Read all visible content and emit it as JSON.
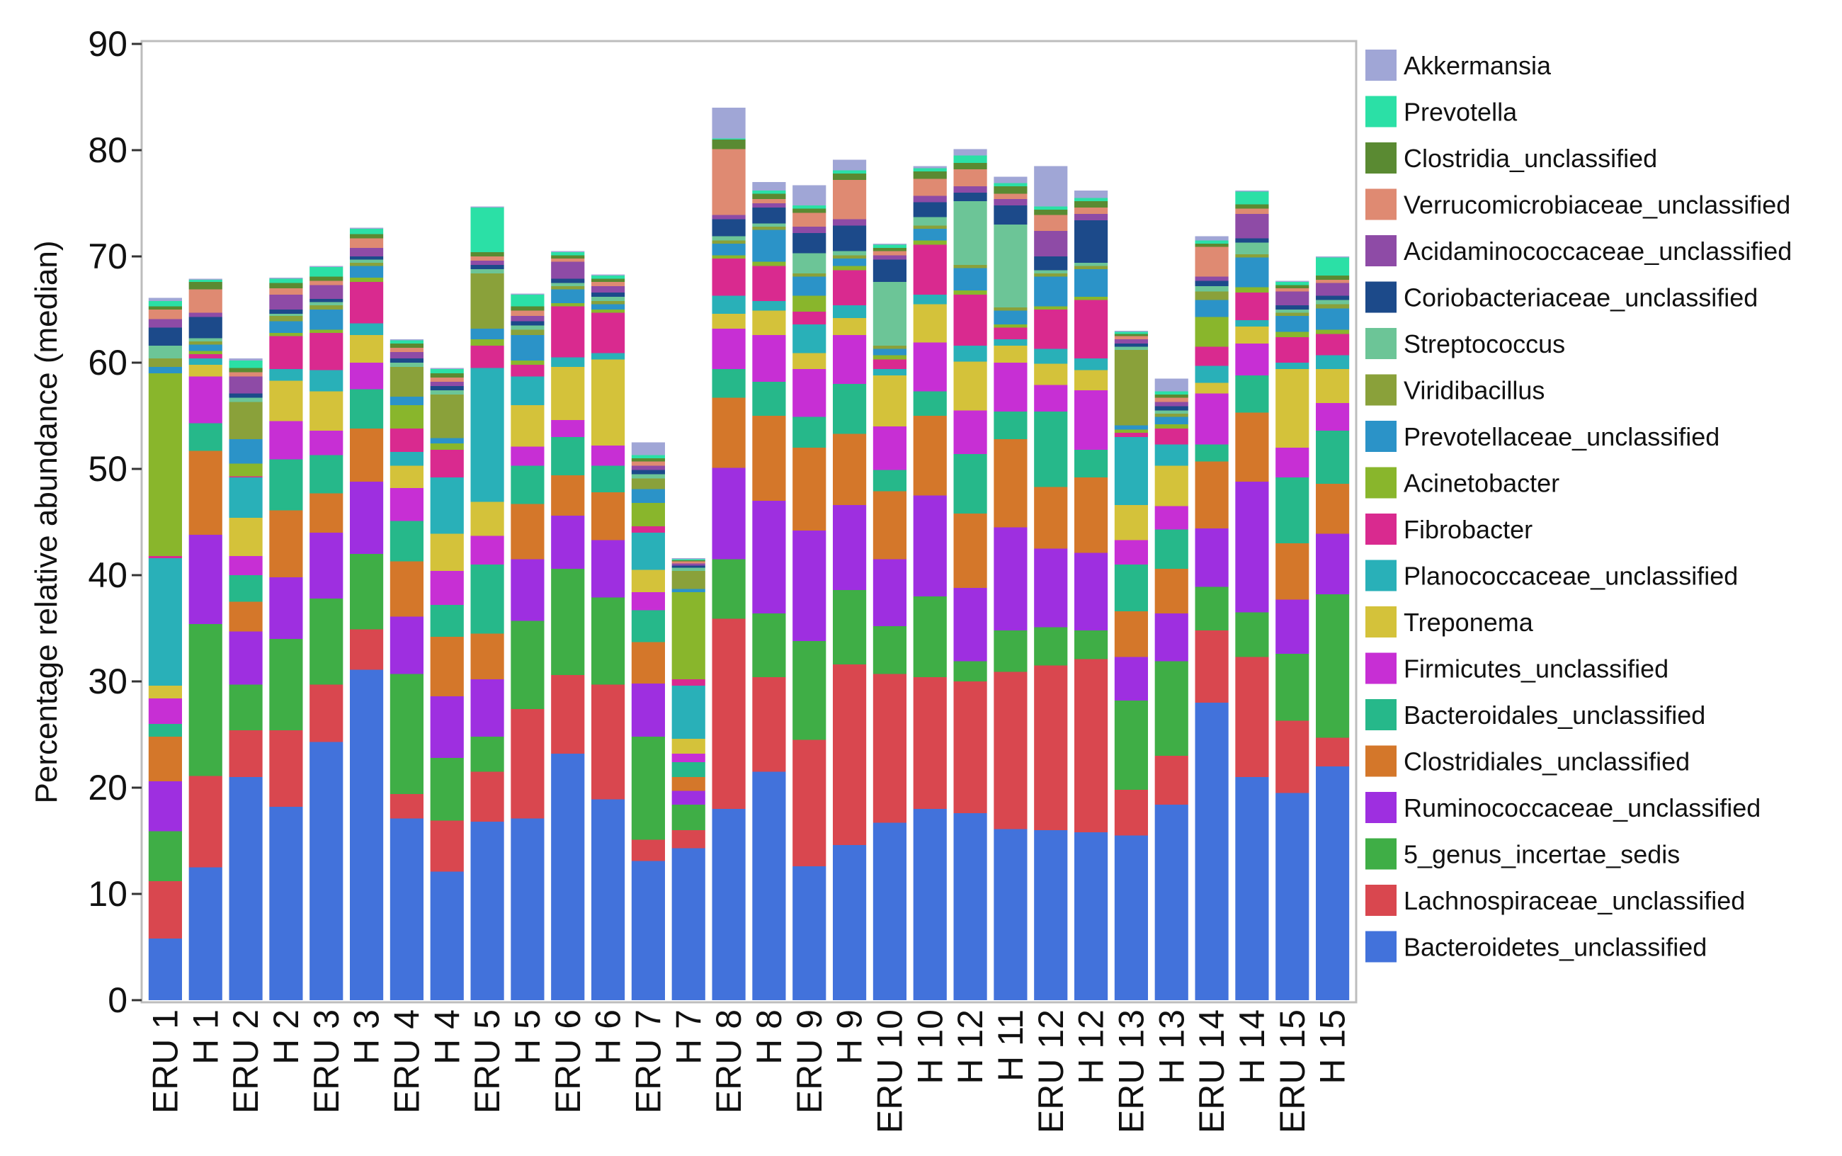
{
  "chart_data": {
    "type": "bar",
    "stacked": true,
    "title": "",
    "xlabel": "",
    "ylabel": "Percentage relative abundance (median)",
    "ylim": [
      0,
      90
    ],
    "yticks": [
      0,
      10,
      20,
      30,
      40,
      50,
      60,
      70,
      80,
      90
    ],
    "grid": false,
    "legend_position": "right",
    "categories": [
      "ERU 1",
      "H 1",
      "ERU 2",
      "H 2",
      "ERU 3",
      "H 3",
      "ERU 4",
      "H 4",
      "ERU 5",
      "H 5",
      "ERU 6",
      "H 6",
      "ERU 7",
      "H 7",
      "ERU 8",
      "H 8",
      "ERU 9",
      "H 9",
      "ERU 10",
      "H 10",
      "H 12",
      "H 11",
      "ERU 12",
      "H 12",
      "ERU 13",
      "H 13",
      "ERU 14",
      "H 14",
      "ERU 15",
      "H 15"
    ],
    "series": [
      {
        "name": "Bacteroidetes_unclassified",
        "color": "#4272db",
        "values": [
          5.8,
          12.5,
          21,
          18.2,
          24.3,
          31.1,
          17.1,
          12.1,
          16.8,
          17.1,
          23.2,
          18.9,
          13.1,
          14.3,
          18,
          21.5,
          12.6,
          14.6,
          16.7,
          18,
          17.6,
          16.1,
          16,
          15.8,
          15.5,
          18.4,
          28,
          21,
          19.5,
          22
        ]
      },
      {
        "name": "Lachnospiraceae_unclassified",
        "color": "#d9474f",
        "values": [
          5.4,
          8.6,
          4.4,
          7.2,
          5.4,
          3.8,
          2.3,
          4.8,
          4.7,
          10.3,
          7.4,
          10.8,
          2,
          1.7,
          17.9,
          8.9,
          11.9,
          17,
          14,
          12.4,
          12.4,
          14.8,
          15.5,
          16.3,
          4.3,
          4.6,
          6.8,
          11.3,
          6.8,
          2.7
        ]
      },
      {
        "name": "5_genus_incertae_sedis",
        "color": "#3fae46",
        "values": [
          4.7,
          14.3,
          4.3,
          8.6,
          8.1,
          7.1,
          11.3,
          5.9,
          3.3,
          8.3,
          10,
          8.2,
          9.7,
          2.4,
          5.6,
          6,
          9.3,
          7,
          4.5,
          7.6,
          1.9,
          3.9,
          3.6,
          2.7,
          8.4,
          8.9,
          4.1,
          4.2,
          6.3,
          13.5
        ]
      },
      {
        "name": "Ruminococcaceae_unclassified",
        "color": "#9e2fe0",
        "values": [
          4.7,
          8.4,
          5,
          5.8,
          6.2,
          6.8,
          5.4,
          5.8,
          5.4,
          5.8,
          5,
          5.4,
          5,
          1.3,
          8.6,
          10.6,
          10.4,
          8,
          6.3,
          9.5,
          6.9,
          9.7,
          7.4,
          7.3,
          4.1,
          4.5,
          5.5,
          12.3,
          5.1,
          5.7
        ]
      },
      {
        "name": "Clostridiales_unclassified",
        "color": "#d4772a",
        "values": [
          4.2,
          7.9,
          2.8,
          6.3,
          3.7,
          5,
          5.2,
          5.6,
          4.3,
          5.2,
          3.8,
          4.5,
          3.9,
          1.3,
          6.6,
          8,
          7.8,
          6.7,
          6.4,
          7.5,
          7,
          8.3,
          5.8,
          7.1,
          4.3,
          4.2,
          6.3,
          6.5,
          5.3,
          4.7
        ]
      },
      {
        "name": "Bacteroidales_unclassified",
        "color": "#26b88a",
        "values": [
          1.2,
          2.6,
          2.5,
          4.8,
          3.6,
          3.7,
          3.8,
          3,
          6.5,
          3.6,
          3.6,
          2.5,
          3,
          1.4,
          2.7,
          3.2,
          2.9,
          4.7,
          2,
          2.3,
          5.6,
          2.6,
          7.1,
          2.6,
          4.4,
          3.7,
          1.6,
          3.5,
          6.2,
          5
        ]
      },
      {
        "name": "Firmicutes_unclassified",
        "color": "#c72fd4",
        "values": [
          2.4,
          4.4,
          1.8,
          3.6,
          2.3,
          2.5,
          3.1,
          3.2,
          2.7,
          1.8,
          1.6,
          1.9,
          1.7,
          0.8,
          3.8,
          4.4,
          4.5,
          4.6,
          4.1,
          4.6,
          4.1,
          4.6,
          2.5,
          5.6,
          2.3,
          2.2,
          4.8,
          3,
          2.8,
          2.6
        ]
      },
      {
        "name": "Treponema",
        "color": "#d4c23a",
        "values": [
          1.2,
          1.1,
          3.6,
          3.8,
          3.7,
          2.6,
          2.1,
          3.5,
          3.2,
          3.9,
          5,
          8.1,
          2.1,
          1.4,
          1.4,
          2.3,
          1.5,
          1.6,
          4.8,
          3.6,
          4.6,
          1.6,
          2,
          1.9,
          3.3,
          3.8,
          1,
          1.6,
          7.4,
          3.2
        ]
      },
      {
        "name": "Planococcaceae_unclassified",
        "color": "#29b0b8",
        "values": [
          12,
          0.6,
          3.8,
          1.1,
          2,
          1.1,
          1.3,
          5.3,
          12.6,
          2.7,
          0.9,
          0.6,
          3.5,
          5,
          1.7,
          0.9,
          2.7,
          1.2,
          0.6,
          0.9,
          1.5,
          0.6,
          1.4,
          1.1,
          6.4,
          2,
          1.6,
          0.6,
          0.6,
          1.3
        ]
      },
      {
        "name": "Fibrobacter",
        "color": "#d92a8f",
        "values": [
          0.2,
          0.4,
          0.1,
          3.1,
          3.5,
          3.9,
          2.2,
          2.6,
          2.1,
          1.1,
          4.8,
          3.8,
          0.6,
          0.6,
          3.5,
          3.3,
          1.2,
          3.3,
          0.9,
          4.7,
          4.8,
          1.1,
          3.7,
          5.5,
          0.4,
          1.5,
          1.8,
          2.6,
          2.4,
          2
        ]
      },
      {
        "name": "Acinetobacter",
        "color": "#89b62c",
        "values": [
          17.2,
          0.3,
          1.2,
          0.3,
          0.3,
          0.4,
          2.2,
          0.6,
          0.6,
          0.4,
          0.3,
          0.3,
          2.2,
          8.2,
          0.3,
          0.4,
          1.5,
          0.4,
          0.4,
          0.4,
          0.4,
          0.3,
          0.3,
          0.3,
          0.3,
          0.4,
          2.8,
          0.5,
          0.5,
          0.4
        ]
      },
      {
        "name": "Prevotellaceae_unclassified",
        "color": "#2b93c8",
        "values": [
          0.6,
          0.6,
          2.3,
          1.1,
          1.9,
          1.1,
          0.8,
          0.5,
          1,
          2.4,
          1.3,
          0.5,
          1.3,
          0.3,
          1.1,
          3,
          1.8,
          0.7,
          0.6,
          1.1,
          2.1,
          1.3,
          2.8,
          2.6,
          0.4,
          0.7,
          1.6,
          2.8,
          1.5,
          2
        ]
      },
      {
        "name": "Viridibacillus",
        "color": "#8aa13a",
        "values": [
          0.8,
          0.3,
          3.5,
          0.5,
          0.4,
          0.3,
          2.8,
          4.1,
          5.2,
          0.5,
          0.3,
          0.3,
          1,
          1.7,
          0.3,
          0.3,
          0.3,
          0.3,
          0.3,
          0.3,
          0.3,
          0.3,
          0.3,
          0.3,
          7.1,
          0.3,
          0.8,
          0.3,
          0.3,
          0.4
        ]
      },
      {
        "name": "Streptococcus",
        "color": "#6cc597",
        "values": [
          1.2,
          0.3,
          0.4,
          0.2,
          0.3,
          0.3,
          0.4,
          0.4,
          0.4,
          0.4,
          0.3,
          0.4,
          0.4,
          0.3,
          0.4,
          0.3,
          1.9,
          0.4,
          6,
          0.8,
          6,
          7.8,
          0.3,
          0.3,
          0.3,
          0.3,
          0.5,
          1.1,
          0.3,
          0.4
        ]
      },
      {
        "name": "Coriobacteriaceae_unclassified",
        "color": "#1c4a8a",
        "values": [
          1.7,
          2,
          0.4,
          0.4,
          0.3,
          0.3,
          0.4,
          0.4,
          0.4,
          0.4,
          0.4,
          0.4,
          0.4,
          0.2,
          1.6,
          1.5,
          1.9,
          2.4,
          2.1,
          1.4,
          0.8,
          1.8,
          1.3,
          4,
          0.3,
          0.4,
          0.5,
          0.4,
          0.4,
          0.4
        ]
      },
      {
        "name": "Acidaminococcaceae_unclassified",
        "color": "#8e4ba6",
        "values": [
          0.8,
          0.4,
          1.6,
          1.4,
          1.3,
          0.8,
          0.6,
          0.4,
          0.4,
          0.5,
          1.6,
          0.6,
          0.4,
          0.2,
          0.4,
          0.4,
          0.6,
          0.6,
          0.4,
          0.6,
          0.6,
          0.6,
          2.4,
          0.6,
          0.4,
          0.4,
          0.4,
          2.3,
          1.3,
          1.2
        ]
      },
      {
        "name": "Verrucomicrobiaceae_unclassified",
        "color": "#df8a72",
        "values": [
          0.9,
          2.2,
          0.4,
          0.6,
          0.4,
          0.9,
          0.4,
          0.4,
          0.4,
          0.5,
          0.3,
          0.4,
          0.4,
          0.2,
          6.2,
          0.4,
          1.3,
          3.7,
          0.4,
          1.6,
          1.6,
          0.5,
          1.5,
          0.6,
          0.3,
          0.4,
          2.8,
          0.5,
          0.3,
          0.3
        ]
      },
      {
        "name": "Clostridia_unclassified",
        "color": "#5a8a32",
        "values": [
          0.3,
          0.7,
          0.4,
          0.5,
          0.4,
          0.4,
          0.4,
          0.4,
          0.4,
          0.4,
          0.3,
          0.3,
          0.3,
          0.1,
          0.9,
          0.5,
          0.4,
          0.6,
          0.3,
          0.7,
          0.6,
          0.7,
          0.5,
          0.6,
          0.2,
          0.3,
          0.3,
          0.4,
          0.3,
          0.4
        ]
      },
      {
        "name": "Prevotella",
        "color": "#2be0a6",
        "values": [
          0.5,
          0.2,
          0.7,
          0.4,
          0.9,
          0.5,
          0.3,
          0.4,
          4.2,
          1.1,
          0.3,
          0.3,
          0.3,
          0.1,
          0.1,
          0.3,
          0.3,
          0.3,
          0.3,
          0.3,
          0.7,
          0.3,
          0.3,
          0.3,
          0.2,
          0.3,
          0.3,
          1.2,
          0.3,
          1.7
        ]
      },
      {
        "name": "Akkermansia",
        "color": "#a0a6d6",
        "values": [
          0.3,
          0.1,
          0.2,
          0.1,
          0.1,
          0.1,
          0.1,
          0.1,
          0.1,
          0.1,
          0.1,
          0.1,
          1.2,
          0.1,
          2.9,
          0.8,
          1.9,
          1,
          0.1,
          0.2,
          0.6,
          0.6,
          3.8,
          0.7,
          0.1,
          1.2,
          0.4,
          0.1,
          0.1,
          0.1
        ]
      }
    ]
  }
}
